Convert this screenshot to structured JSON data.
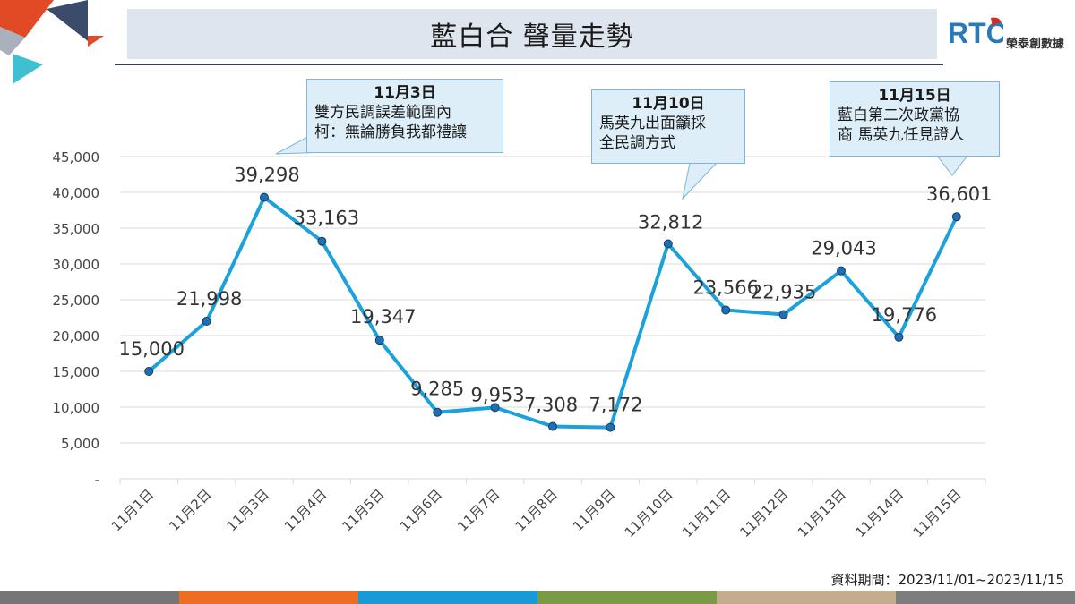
{
  "header": {
    "title": "藍白合 聲量走勢"
  },
  "brand": {
    "mark_text": "RTC",
    "name": "榮泰創數據"
  },
  "source": {
    "text": "資料期間：2023/11/01~2023/11/15"
  },
  "colors": {
    "line": "#1ba1dc",
    "marker_fill": "#1f6fb3",
    "marker_stroke": "#1a3a66",
    "grid": "#d9d9d9",
    "bottom_bar": [
      "#767676",
      "#ed6d23",
      "#179ad6",
      "#7b9a47",
      "#c3ad8d",
      "#7d7d7d"
    ]
  },
  "callouts": [
    {
      "title": "11月3日",
      "lines": [
        "雙方民調誤差範圍內",
        "柯：無論勝負我都禮讓"
      ]
    },
    {
      "title": "11月10日",
      "lines": [
        "馬英九出面籲採",
        "全民調方式"
      ]
    },
    {
      "title": "11月15日",
      "lines": [
        "藍白第二次政黨協",
        "商 馬英九任見證人"
      ]
    }
  ],
  "chart_data": {
    "type": "line",
    "categories": [
      "11月1日",
      "11月2日",
      "11月3日",
      "11月4日",
      "11月5日",
      "11月6日",
      "11月7日",
      "11月8日",
      "11月9日",
      "11月10日",
      "11月11日",
      "11月12日",
      "11月13日",
      "11月14日",
      "11月15日"
    ],
    "series": [
      {
        "values": [
          15000,
          21998,
          39298,
          33163,
          19347,
          9285,
          9953,
          7308,
          7172,
          32812,
          23566,
          22935,
          29043,
          19776,
          36601
        ]
      }
    ],
    "data_labels": [
      "15,000",
      "21,998",
      "39,298",
      "33,163",
      "19,347",
      "9,285",
      "9,953",
      "7,308",
      "7,172",
      "32,812",
      "23,566",
      "22,935",
      "29,043",
      "19,776",
      "36,601"
    ],
    "y_ticks": [
      0,
      5000,
      10000,
      15000,
      20000,
      25000,
      30000,
      35000,
      40000,
      45000
    ],
    "y_tick_labels": [
      "-",
      "5,000",
      "10,000",
      "15,000",
      "20,000",
      "25,000",
      "30,000",
      "35,000",
      "40,000",
      "45,000"
    ],
    "ylim": [
      0,
      45000
    ],
    "grid": true,
    "legend": "none"
  }
}
